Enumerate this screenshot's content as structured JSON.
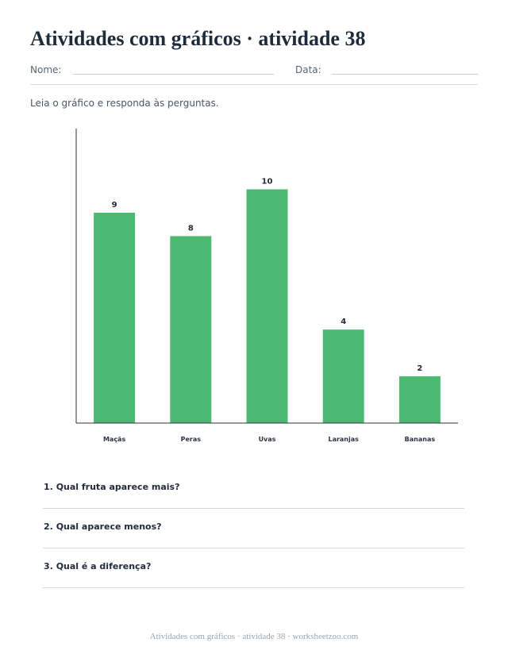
{
  "header": {
    "title": "Atividades com gráficos · atividade 38",
    "name_label": "Nome:",
    "date_label": "Data:"
  },
  "instructions": "Leia o gráfico e responda às perguntas.",
  "chart_data": {
    "type": "bar",
    "categories": [
      "Maçãs",
      "Peras",
      "Uvas",
      "Laranjas",
      "Bananas"
    ],
    "values": [
      9,
      8,
      10,
      4,
      2
    ],
    "title": "",
    "xlabel": "",
    "ylabel": "",
    "ylim": [
      0,
      12.6
    ],
    "grid": false,
    "data_labels": true,
    "bar_color": "#4cb872"
  },
  "questions": [
    {
      "number": "1.",
      "text": "Qual fruta aparece mais?"
    },
    {
      "number": "2.",
      "text": "Qual aparece menos?"
    },
    {
      "number": "3.",
      "text": "Qual é a diferença?"
    }
  ],
  "footer": "Atividades com gráficos · atividade 38 · worksheetzoo.com"
}
